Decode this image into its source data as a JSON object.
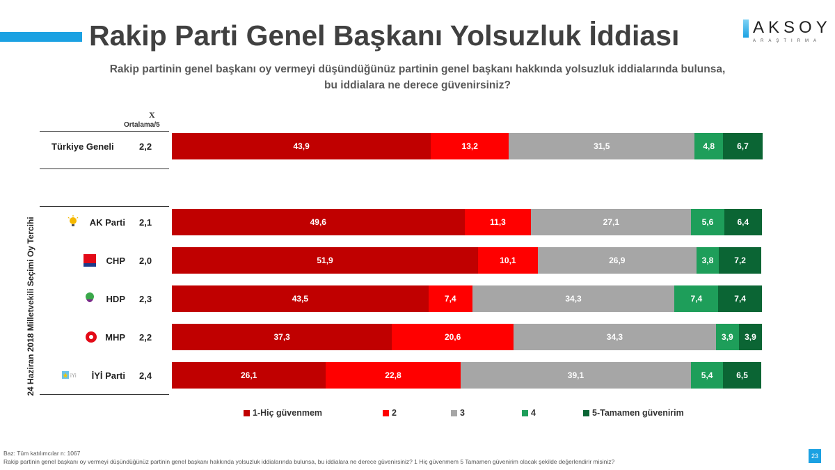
{
  "title": "Rakip Parti Genel Başkanı Yolsuzluk İddiası",
  "logo": {
    "name": "AKSOY",
    "sub": "ARAŞTIRMA"
  },
  "subtitle_line1": "Rakip partinin genel başkanı oy vermeyi düşündüğünüz partinin genel başkanı hakkında yolsuzluk iddialarında bulunsa,",
  "subtitle_line2": "bu iddialara ne derece güvenirsiniz?",
  "mean_header_symbol": "X",
  "mean_header": "Ortalama/5",
  "group_label": "24 Haziran 2018 Milletvekili Seçimi Oy Tercihi",
  "colors": [
    "#C00000",
    "#FF0000",
    "#A6A6A6",
    "#1E9E5A",
    "#0B6534"
  ],
  "chart_data": {
    "type": "bar",
    "orientation": "horizontal-stacked-100",
    "categories": [
      "Türkiye Geneli",
      "AK Parti",
      "CHP",
      "HDP",
      "MHP",
      "İYİ Parti"
    ],
    "means": [
      "2,2",
      "2,1",
      "2,0",
      "2,3",
      "2,2",
      "2,4"
    ],
    "series": [
      {
        "name": "1-Hiç güvenmem",
        "values": [
          43.9,
          49.6,
          51.9,
          43.5,
          37.3,
          26.1
        ]
      },
      {
        "name": "2",
        "values": [
          13.2,
          11.3,
          10.1,
          7.4,
          20.6,
          22.8
        ]
      },
      {
        "name": "3",
        "values": [
          31.5,
          27.1,
          26.9,
          34.3,
          34.3,
          39.1
        ]
      },
      {
        "name": "4",
        "values": [
          4.8,
          5.6,
          3.8,
          7.4,
          3.9,
          5.4
        ]
      },
      {
        "name": "5-Tamamen güvenirim",
        "values": [
          6.7,
          6.4,
          7.2,
          7.4,
          3.9,
          6.5
        ]
      }
    ],
    "legend_position": "bottom"
  },
  "footer": {
    "base": "Baz: Tüm katılımcılar n: 1067",
    "question": "Rakip partinin genel başkanı oy vermeyi düşündüğünüz partinin genel başkanı hakkında yolsuzluk iddialarında bulunsa, bu iddialara ne derece güvenirsiniz? 1 Hiç güvenmem 5 Tamamen güvenirim olacak şekilde değerlendirir misiniz?",
    "page": "23"
  }
}
